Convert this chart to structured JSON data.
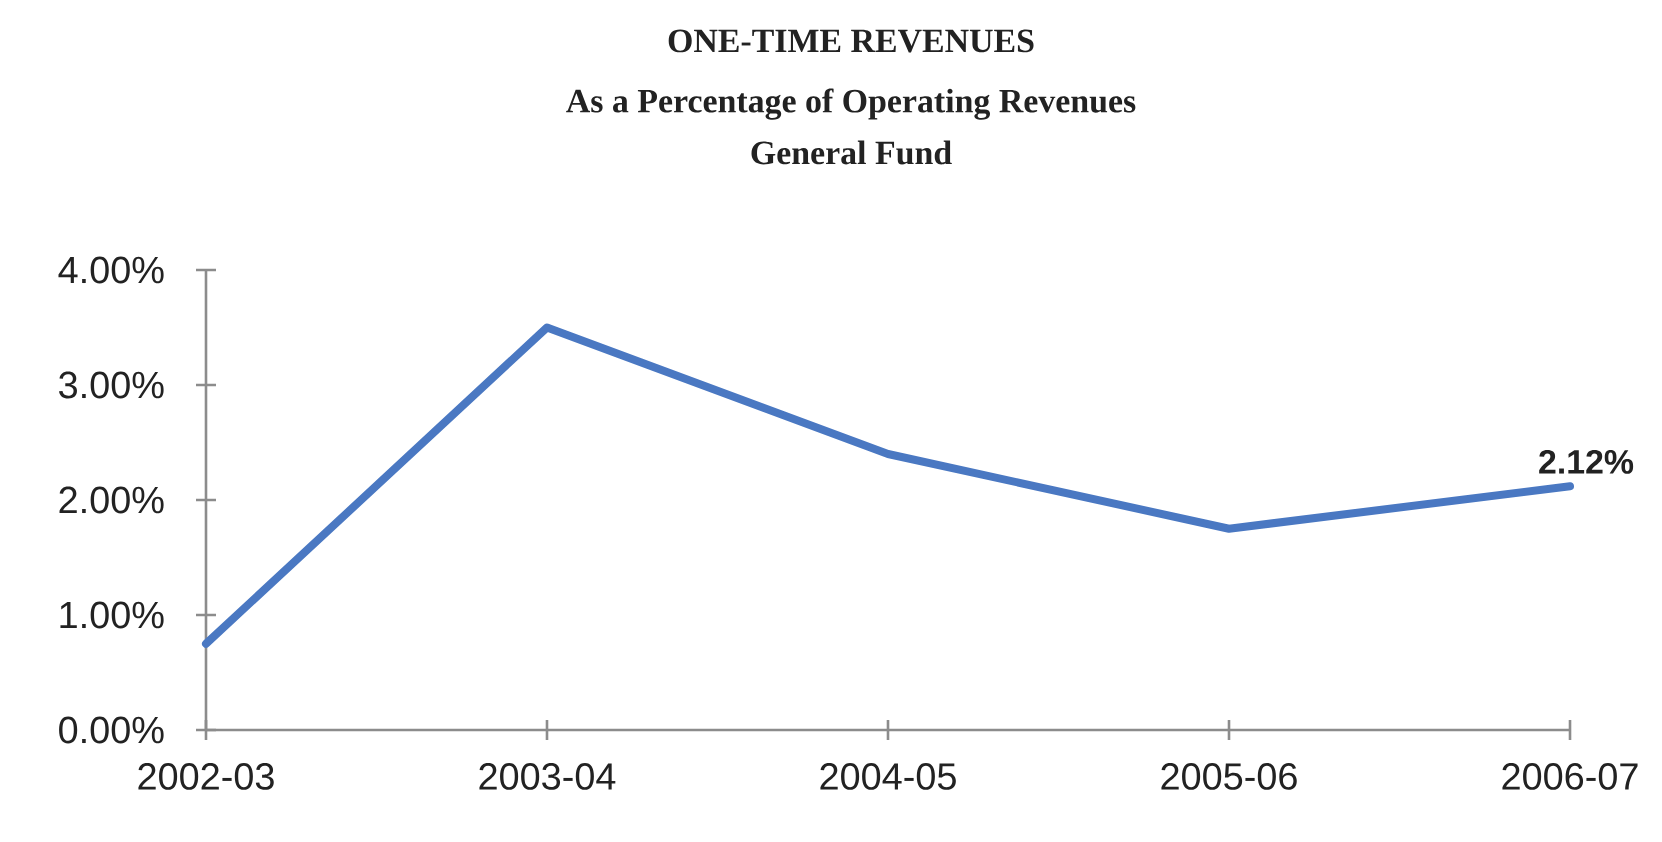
{
  "chart_data": {
    "type": "line",
    "title": "ONE-TIME REVENUES",
    "subtitle": "As a Percentage of Operating Revenues General Fund",
    "categories": [
      "2002-03",
      "2003-04",
      "2004-05",
      "2005-06",
      "2006-07"
    ],
    "values": [
      0.75,
      3.5,
      2.4,
      1.75,
      2.12
    ],
    "color": "#4a78c2",
    "value_labels": [
      null,
      null,
      null,
      null,
      "2.12%"
    ],
    "ylim": [
      0,
      4
    ],
    "yticks": [
      {
        "value": 0,
        "label": "0.00%"
      },
      {
        "value": 1,
        "label": "1.00%"
      },
      {
        "value": 2,
        "label": "2.00%"
      },
      {
        "value": 3,
        "label": "3.00%"
      },
      {
        "value": 4,
        "label": "4.00%"
      }
    ]
  }
}
